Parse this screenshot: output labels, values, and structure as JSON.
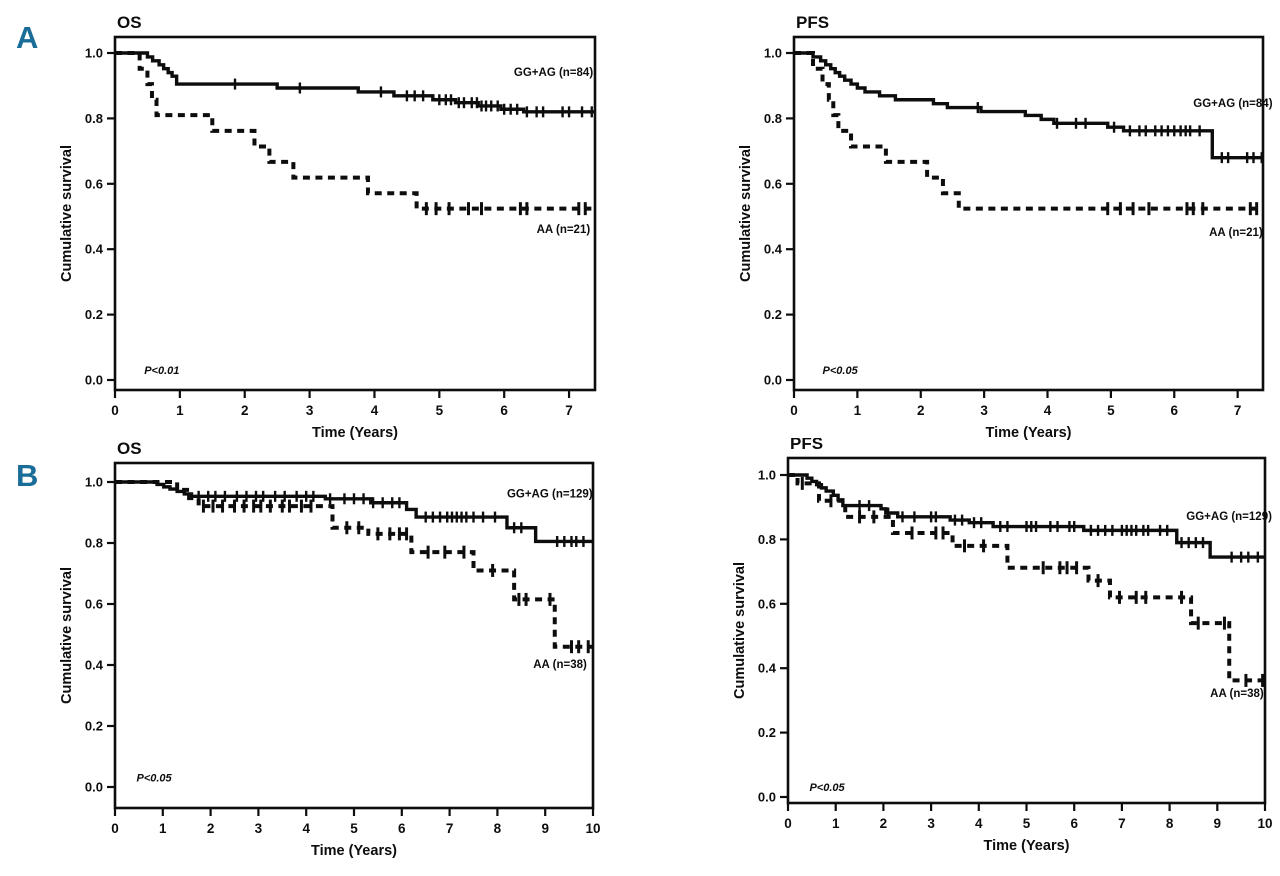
{
  "figure": {
    "panel_a_letter": "A",
    "panel_b_letter": "B",
    "accent_color": "#1b6d99",
    "ink_color": "#0d0d0d"
  },
  "chart_data": [
    {
      "id": "a-os",
      "type": "line",
      "subtype": "kaplan-meier-step",
      "title": "OS",
      "xlabel": "Time (Years)",
      "ylabel": "Cumulative survival",
      "pvalue": {
        "text": "P<0.01",
        "x": 0.45,
        "y": 0.018
      },
      "xlim": [
        0,
        7.4
      ],
      "xticks": [
        0,
        1,
        2,
        3,
        4,
        5,
        6,
        7
      ],
      "yticks": [
        "1.0",
        "0.8",
        "0.6",
        "0.4",
        "0.2",
        "0.0"
      ],
      "grid": false,
      "legend_position": "inline-right",
      "series": [
        {
          "key": "gg-ag",
          "name": "GG+AG (n=84)",
          "style": "solid",
          "label_x": 6.15,
          "label_y": 0.93,
          "steps": [
            [
              0,
              1.0
            ],
            [
              0.5,
              0.988
            ],
            [
              0.58,
              0.976
            ],
            [
              0.68,
              0.964
            ],
            [
              0.75,
              0.952
            ],
            [
              0.82,
              0.94
            ],
            [
              0.88,
              0.929
            ],
            [
              0.95,
              0.905
            ],
            [
              2.5,
              0.893
            ],
            [
              3.75,
              0.881
            ],
            [
              4.3,
              0.869
            ],
            [
              4.9,
              0.857
            ],
            [
              5.25,
              0.848
            ],
            [
              5.6,
              0.838
            ],
            [
              5.95,
              0.828
            ],
            [
              6.3,
              0.82
            ]
          ],
          "censors": [
            1.85,
            2.85,
            4.1,
            4.5,
            4.62,
            4.75,
            5.0,
            5.1,
            5.18,
            5.3,
            5.38,
            5.5,
            5.58,
            5.65,
            5.72,
            5.8,
            5.9,
            6.0,
            6.1,
            6.2,
            6.35,
            6.5,
            6.6,
            6.9,
            7.0,
            7.2,
            7.35
          ]
        },
        {
          "key": "aa",
          "name": "AA (n=21)",
          "style": "dashed",
          "label_x": 6.5,
          "label_y": 0.45,
          "steps": [
            [
              0,
              1.0
            ],
            [
              0.38,
              0.952
            ],
            [
              0.5,
              0.905
            ],
            [
              0.57,
              0.857
            ],
            [
              0.64,
              0.81
            ],
            [
              1.5,
              0.762
            ],
            [
              2.15,
              0.714
            ],
            [
              2.38,
              0.667
            ],
            [
              2.75,
              0.619
            ],
            [
              3.9,
              0.571
            ],
            [
              4.65,
              0.524
            ]
          ],
          "censors": [
            4.8,
            4.95,
            5.15,
            5.45,
            5.65,
            6.25,
            6.35,
            7.15,
            7.25
          ]
        }
      ],
      "layout": {
        "svg_rect": [
          40,
          0,
          620,
          448
        ],
        "frame": [
          115,
          37,
          595,
          390
        ],
        "y_of_1": 53,
        "y_of_0": 380
      }
    },
    {
      "id": "a-pfs",
      "type": "line",
      "subtype": "kaplan-meier-step",
      "title": "PFS",
      "xlabel": "Time (Years)",
      "ylabel": "Cumulative survival",
      "pvalue": {
        "text": "P<0.05",
        "x": 0.45,
        "y": 0.018
      },
      "xlim": [
        0,
        7.4
      ],
      "xticks": [
        0,
        1,
        2,
        3,
        4,
        5,
        6,
        7
      ],
      "yticks": [
        "1.0",
        "0.8",
        "0.6",
        "0.4",
        "0.2",
        "0.0"
      ],
      "grid": false,
      "legend_position": "inline-right",
      "series": [
        {
          "key": "gg-ag",
          "name": "GG+AG (n=84)",
          "style": "solid",
          "label_x": 6.3,
          "label_y": 0.835,
          "steps": [
            [
              0,
              1.0
            ],
            [
              0.3,
              0.988
            ],
            [
              0.42,
              0.976
            ],
            [
              0.5,
              0.964
            ],
            [
              0.58,
              0.952
            ],
            [
              0.65,
              0.94
            ],
            [
              0.72,
              0.929
            ],
            [
              0.8,
              0.917
            ],
            [
              0.9,
              0.905
            ],
            [
              1.0,
              0.893
            ],
            [
              1.12,
              0.881
            ],
            [
              1.35,
              0.869
            ],
            [
              1.6,
              0.857
            ],
            [
              2.2,
              0.845
            ],
            [
              2.42,
              0.833
            ],
            [
              2.95,
              0.821
            ],
            [
              3.65,
              0.809
            ],
            [
              3.9,
              0.797
            ],
            [
              4.1,
              0.785
            ],
            [
              4.95,
              0.773
            ],
            [
              5.2,
              0.762
            ],
            [
              6.6,
              0.68
            ]
          ],
          "censors": [
            2.9,
            4.15,
            4.45,
            4.6,
            5.05,
            5.3,
            5.45,
            5.55,
            5.7,
            5.8,
            5.9,
            6.0,
            6.1,
            6.18,
            6.25,
            6.4,
            6.75,
            6.85,
            7.15,
            7.25,
            7.38
          ]
        },
        {
          "key": "aa",
          "name": "AA (n=21)",
          "style": "dashed",
          "label_x": 6.55,
          "label_y": 0.44,
          "steps": [
            [
              0,
              1.0
            ],
            [
              0.3,
              0.952
            ],
            [
              0.45,
              0.905
            ],
            [
              0.55,
              0.857
            ],
            [
              0.62,
              0.81
            ],
            [
              0.7,
              0.762
            ],
            [
              0.9,
              0.714
            ],
            [
              1.45,
              0.667
            ],
            [
              2.1,
              0.619
            ],
            [
              2.35,
              0.571
            ],
            [
              2.6,
              0.524
            ]
          ],
          "censors": [
            4.95,
            5.15,
            5.35,
            5.6,
            6.2,
            6.3,
            6.45,
            7.2,
            7.3
          ]
        }
      ],
      "layout": {
        "svg_rect": [
          700,
          0,
          580,
          448
        ],
        "frame": [
          794,
          37,
          1263,
          390
        ],
        "y_of_1": 53,
        "y_of_0": 380
      }
    },
    {
      "id": "b-os",
      "type": "line",
      "subtype": "kaplan-meier-step",
      "title": "OS",
      "xlabel": "Time (Years)",
      "ylabel": "Cumulative survival",
      "pvalue": {
        "text": "P<0.05",
        "x": 0.45,
        "y": 0.018
      },
      "xlim": [
        0,
        10
      ],
      "xticks": [
        0,
        1,
        2,
        3,
        4,
        5,
        6,
        7,
        8,
        9,
        10
      ],
      "yticks": [
        "1.0",
        "0.8",
        "0.6",
        "0.4",
        "0.2",
        "0.0"
      ],
      "grid": false,
      "legend_position": "inline-right",
      "series": [
        {
          "key": "gg-ag",
          "name": "GG+AG (n=129)",
          "style": "solid",
          "label_x": 8.2,
          "label_y": 0.95,
          "steps": [
            [
              0,
              1.0
            ],
            [
              0.88,
              0.992
            ],
            [
              1.02,
              0.984
            ],
            [
              1.15,
              0.977
            ],
            [
              1.3,
              0.969
            ],
            [
              1.45,
              0.961
            ],
            [
              1.6,
              0.953
            ],
            [
              4.4,
              0.945
            ],
            [
              5.35,
              0.932
            ],
            [
              6.1,
              0.91
            ],
            [
              6.3,
              0.885
            ],
            [
              8.2,
              0.85
            ],
            [
              8.8,
              0.805
            ]
          ],
          "censors": [
            1.75,
            1.95,
            2.1,
            2.3,
            2.55,
            2.75,
            2.95,
            3.1,
            3.35,
            3.55,
            3.8,
            4.0,
            4.15,
            4.5,
            4.8,
            5.0,
            5.2,
            5.4,
            5.6,
            5.8,
            5.95,
            6.5,
            6.65,
            6.8,
            6.95,
            7.05,
            7.15,
            7.25,
            7.35,
            7.5,
            7.7,
            7.95,
            8.35,
            8.5,
            9.25,
            9.4,
            9.55,
            9.65,
            9.8
          ]
        },
        {
          "key": "aa",
          "name": "AA (n=38)",
          "style": "dashed",
          "label_x": 8.75,
          "label_y": 0.39,
          "steps": [
            [
              0,
              1.0
            ],
            [
              1.3,
              0.974
            ],
            [
              1.55,
              0.947
            ],
            [
              1.75,
              0.921
            ],
            [
              4.55,
              0.85
            ],
            [
              5.3,
              0.83
            ],
            [
              6.2,
              0.77
            ],
            [
              7.5,
              0.71
            ],
            [
              8.35,
              0.615
            ],
            [
              9.2,
              0.46
            ]
          ],
          "censors": [
            1.85,
            2.05,
            2.25,
            2.5,
            2.7,
            2.9,
            3.05,
            3.25,
            3.5,
            3.65,
            3.9,
            4.1,
            4.85,
            5.1,
            5.5,
            5.75,
            5.95,
            6.1,
            6.55,
            6.9,
            7.3,
            7.9,
            8.45,
            8.6,
            9.1,
            9.55,
            9.7,
            9.9
          ]
        }
      ],
      "layout": {
        "svg_rect": [
          40,
          438,
          620,
          438
        ],
        "frame": [
          115,
          463,
          593,
          808
        ],
        "y_of_1": 482,
        "y_of_0": 787
      }
    },
    {
      "id": "b-pfs",
      "type": "line",
      "subtype": "kaplan-meier-step",
      "title": "PFS",
      "xlabel": "Time (Years)",
      "ylabel": "Cumulative survival",
      "pvalue": {
        "text": "P<0.05",
        "x": 0.45,
        "y": 0.018
      },
      "xlim": [
        0,
        10
      ],
      "xticks": [
        0,
        1,
        2,
        3,
        4,
        5,
        6,
        7,
        8,
        9,
        10
      ],
      "yticks": [
        "1.0",
        "0.8",
        "0.6",
        "0.4",
        "0.2",
        "0.0"
      ],
      "grid": false,
      "legend_position": "inline-right",
      "series": [
        {
          "key": "gg-ag",
          "name": "GG+AG (n=129)",
          "style": "solid",
          "label_x": 8.35,
          "label_y": 0.86,
          "steps": [
            [
              0,
              1.0
            ],
            [
              0.4,
              0.99
            ],
            [
              0.5,
              0.98
            ],
            [
              0.6,
              0.97
            ],
            [
              0.7,
              0.96
            ],
            [
              0.8,
              0.95
            ],
            [
              0.95,
              0.937
            ],
            [
              1.05,
              0.923
            ],
            [
              1.15,
              0.905
            ],
            [
              1.95,
              0.895
            ],
            [
              2.05,
              0.882
            ],
            [
              2.3,
              0.87
            ],
            [
              3.4,
              0.86
            ],
            [
              3.8,
              0.852
            ],
            [
              4.3,
              0.84
            ],
            [
              6.2,
              0.828
            ],
            [
              8.15,
              0.79
            ],
            [
              8.85,
              0.745
            ]
          ],
          "censors": [
            1.5,
            1.7,
            2.1,
            2.4,
            2.65,
            3.0,
            3.1,
            3.5,
            3.65,
            3.9,
            4.05,
            4.45,
            4.6,
            5.0,
            5.1,
            5.2,
            5.5,
            5.65,
            5.9,
            6.0,
            6.35,
            6.5,
            6.65,
            6.8,
            7.0,
            7.1,
            7.2,
            7.3,
            7.45,
            7.55,
            7.8,
            7.95,
            8.25,
            8.4,
            8.55,
            8.7,
            9.3,
            9.5,
            9.65,
            9.85
          ]
        },
        {
          "key": "aa",
          "name": "AA (n=38)",
          "style": "dashed",
          "label_x": 8.85,
          "label_y": 0.31,
          "steps": [
            [
              0,
              1.0
            ],
            [
              0.2,
              0.974
            ],
            [
              0.65,
              0.92
            ],
            [
              1.2,
              0.87
            ],
            [
              2.2,
              0.82
            ],
            [
              3.45,
              0.78
            ],
            [
              4.6,
              0.712
            ],
            [
              6.3,
              0.672
            ],
            [
              6.75,
              0.62
            ],
            [
              8.45,
              0.54
            ],
            [
              9.25,
              0.362
            ]
          ],
          "censors": [
            0.3,
            0.9,
            1.5,
            1.8,
            2.6,
            3.1,
            3.25,
            3.7,
            4.1,
            5.35,
            5.7,
            5.85,
            6.05,
            6.5,
            6.95,
            7.3,
            7.5,
            8.25,
            8.6,
            9.15,
            9.6,
            9.95
          ]
        }
      ],
      "layout": {
        "svg_rect": [
          700,
          438,
          580,
          438
        ],
        "frame": [
          788,
          458,
          1265,
          803
        ],
        "y_of_1": 475,
        "y_of_0": 797
      }
    }
  ]
}
